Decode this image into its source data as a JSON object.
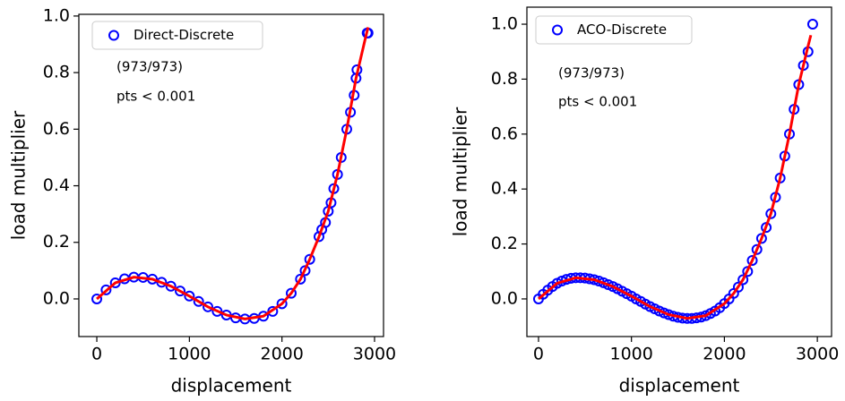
{
  "chart_data": [
    {
      "type": "scatter",
      "legend": "upper left",
      "annotations": [
        "(973/973)",
        "pts < 0.001"
      ],
      "x_label": "displacement",
      "y_label": "load multiplier",
      "xlim": [
        -194,
        3097
      ],
      "ylim": [
        -0.133,
        1.006
      ],
      "xticks": [
        0,
        1000,
        2000,
        3000
      ],
      "yticks": [
        {
          "value": 0,
          "label": "0.0"
        },
        {
          "value": 0.2,
          "label": "0.2"
        },
        {
          "value": 0.4,
          "label": "0.4"
        },
        {
          "value": 0.6,
          "label": "0.6"
        },
        {
          "value": 0.8,
          "label": "0.8"
        },
        {
          "value": 1,
          "label": "1.0"
        }
      ],
      "series": [
        {
          "name": "Direct-Discrete",
          "color": "#0000ff",
          "marker": "open-circle",
          "x": [
            0,
            100,
            200,
            300,
            400,
            500,
            600,
            700,
            800,
            900,
            1000,
            1100,
            1200,
            1300,
            1400,
            1500,
            1600,
            1700,
            1800,
            1900,
            2000,
            2100,
            2200,
            2250,
            2300,
            2400,
            2430,
            2470,
            2500,
            2530,
            2560,
            2600,
            2640,
            2700,
            2740,
            2780,
            2800,
            2810,
            2920,
            2930
          ],
          "values": [
            0,
            0.032,
            0.057,
            0.071,
            0.077,
            0.076,
            0.07,
            0.059,
            0.045,
            0.028,
            0.01,
            -0.009,
            -0.028,
            -0.044,
            -0.057,
            -0.067,
            -0.071,
            -0.069,
            -0.061,
            -0.044,
            -0.017,
            0.02,
            0.07,
            0.1,
            0.14,
            0.22,
            0.245,
            0.27,
            0.31,
            0.34,
            0.39,
            0.44,
            0.5,
            0.6,
            0.66,
            0.72,
            0.78,
            0.81,
            0.94,
            0.94
          ]
        },
        {
          "color": "#ff0000",
          "marker": "line",
          "x": [
            0,
            200,
            400,
            600,
            800,
            1000,
            1200,
            1400,
            1600,
            1800,
            2000,
            2100,
            2200,
            2300,
            2400,
            2500,
            2600,
            2700,
            2800,
            2900,
            2930
          ],
          "values": [
            0,
            0.057,
            0.077,
            0.07,
            0.045,
            0.01,
            -0.028,
            -0.057,
            -0.071,
            -0.061,
            -0.017,
            0.02,
            0.07,
            0.14,
            0.22,
            0.31,
            0.44,
            0.6,
            0.78,
            0.92,
            0.96
          ]
        }
      ]
    },
    {
      "type": "scatter",
      "legend": "upper left",
      "annotations": [
        "(973/973)",
        "pts < 0.001"
      ],
      "x_label": "displacement",
      "y_label": "load multiplier",
      "xlim": [
        -125,
        3153
      ],
      "ylim": [
        -0.137,
        1.062
      ],
      "xticks": [
        0,
        1000,
        2000,
        3000
      ],
      "yticks": [
        {
          "value": 0,
          "label": "0.0"
        },
        {
          "value": 0.2,
          "label": "0.2"
        },
        {
          "value": 0.4,
          "label": "0.4"
        },
        {
          "value": 0.6,
          "label": "0.6"
        },
        {
          "value": 0.8,
          "label": "0.8"
        },
        {
          "value": 1,
          "label": "1.0"
        }
      ],
      "series": [
        {
          "name": "ACO-Discrete",
          "color": "#0000ff",
          "marker": "open-circle",
          "x": [
            0,
            50,
            100,
            150,
            200,
            250,
            300,
            350,
            400,
            450,
            500,
            550,
            600,
            650,
            700,
            750,
            800,
            850,
            900,
            950,
            1000,
            1050,
            1100,
            1150,
            1200,
            1250,
            1300,
            1350,
            1400,
            1450,
            1500,
            1550,
            1600,
            1650,
            1700,
            1750,
            1800,
            1850,
            1900,
            1950,
            2000,
            2050,
            2100,
            2150,
            2200,
            2250,
            2300,
            2350,
            2400,
            2450,
            2500,
            2550,
            2600,
            2650,
            2700,
            2750,
            2800,
            2850,
            2900,
            2950
          ],
          "values": [
            0,
            0.017,
            0.032,
            0.045,
            0.057,
            0.065,
            0.071,
            0.075,
            0.077,
            0.077,
            0.076,
            0.073,
            0.07,
            0.065,
            0.059,
            0.052,
            0.045,
            0.037,
            0.028,
            0.019,
            0.01,
            0,
            -0.009,
            -0.019,
            -0.028,
            -0.036,
            -0.044,
            -0.051,
            -0.057,
            -0.063,
            -0.067,
            -0.07,
            -0.071,
            -0.071,
            -0.069,
            -0.066,
            -0.061,
            -0.053,
            -0.044,
            -0.032,
            -0.017,
            0,
            0.02,
            0.043,
            0.07,
            0.1,
            0.14,
            0.18,
            0.22,
            0.26,
            0.31,
            0.37,
            0.44,
            0.52,
            0.6,
            0.69,
            0.78,
            0.85,
            0.9,
            1.0
          ]
        },
        {
          "color": "#ff0000",
          "marker": "line",
          "x": [
            0,
            200,
            400,
            600,
            800,
            1000,
            1200,
            1400,
            1600,
            1800,
            2000,
            2100,
            2200,
            2300,
            2400,
            2500,
            2600,
            2700,
            2800,
            2900,
            2930
          ],
          "values": [
            0,
            0.057,
            0.077,
            0.07,
            0.045,
            0.01,
            -0.028,
            -0.057,
            -0.071,
            -0.061,
            -0.017,
            0.02,
            0.07,
            0.14,
            0.22,
            0.31,
            0.44,
            0.6,
            0.78,
            0.92,
            0.96
          ]
        }
      ]
    }
  ]
}
